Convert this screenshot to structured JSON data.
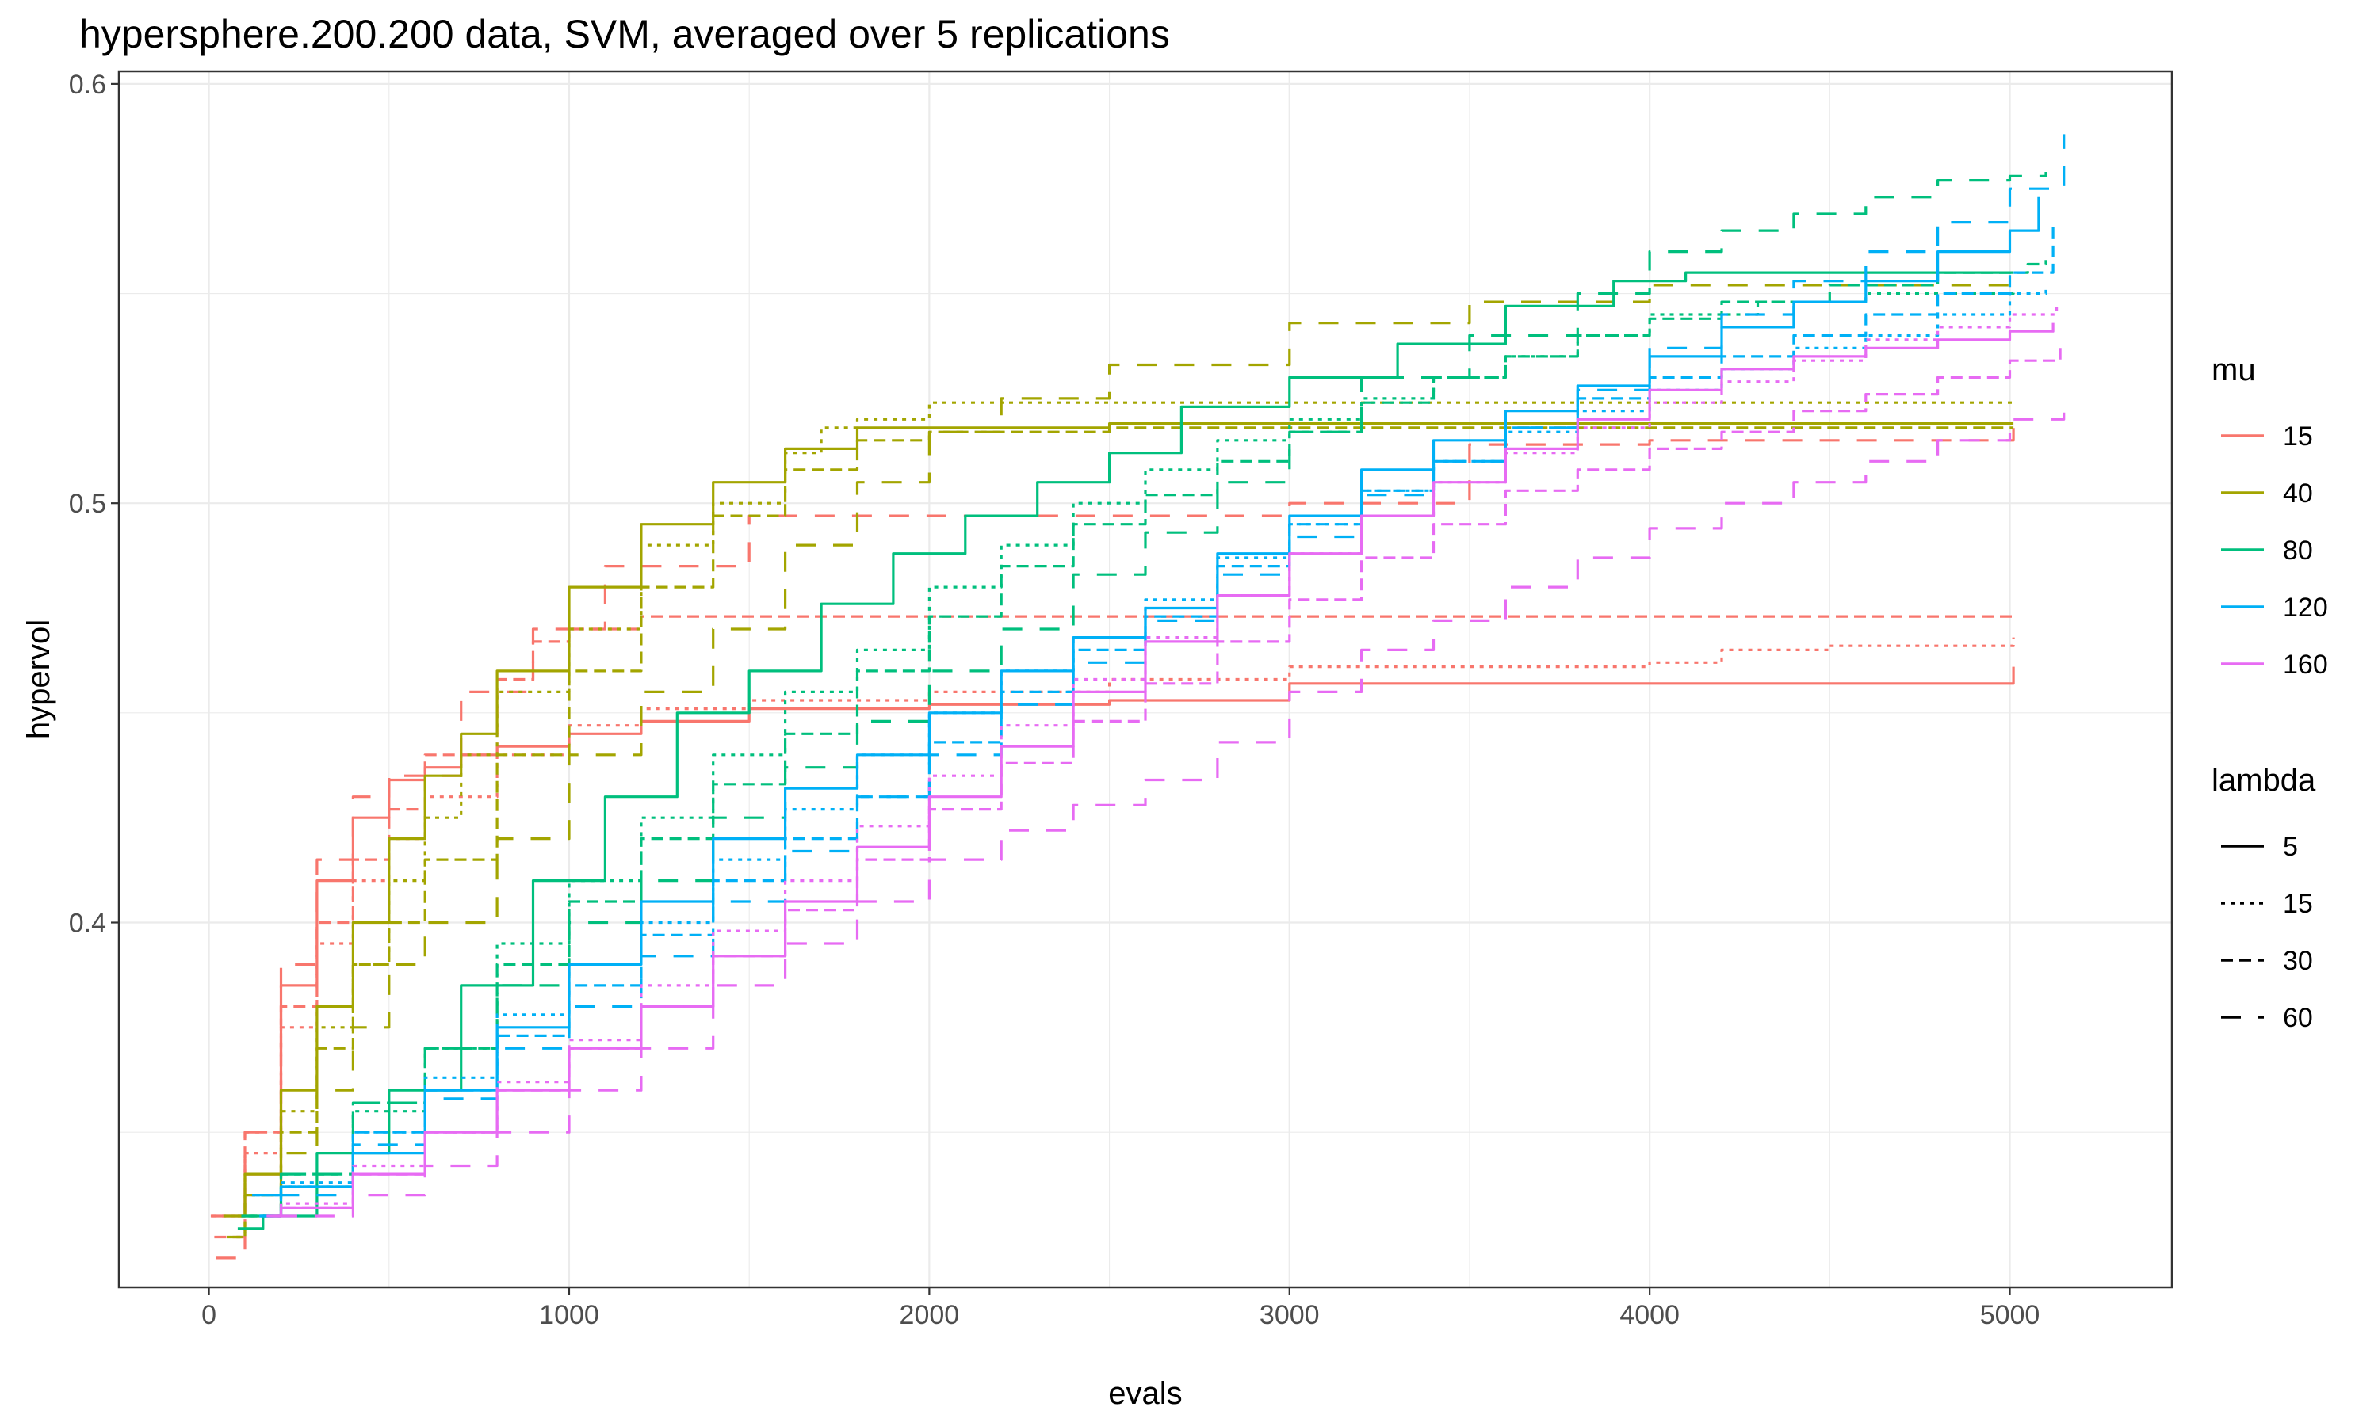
{
  "chart_data": {
    "type": "line",
    "title": "hypersphere.200.200 data, SVM, averaged over 5 replications",
    "xlabel": "evals",
    "ylabel": "hypervol",
    "xlim": [
      -250,
      5450
    ],
    "ylim": [
      0.313,
      0.603
    ],
    "x_ticks": [
      0,
      1000,
      2000,
      3000,
      4000,
      5000
    ],
    "x_tick_labels": [
      "0",
      "1000",
      "2000",
      "3000",
      "4000",
      "5000"
    ],
    "y_ticks": [
      0.4,
      0.5,
      0.6
    ],
    "y_tick_labels": [
      "0.4",
      "0.5",
      "0.6"
    ],
    "grid": true,
    "legend_placement": "right",
    "colors": {
      "15": "#F8766D",
      "40": "#A3A500",
      "80": "#00BF7D",
      "120": "#00B0F6",
      "160": "#E76BF3"
    },
    "legends": [
      {
        "title": "mu",
        "kind": "color",
        "entries": [
          "15",
          "40",
          "80",
          "120",
          "160"
        ]
      },
      {
        "title": "lambda",
        "kind": "linetype",
        "entries": [
          "5",
          "15",
          "30",
          "60"
        ],
        "dashes": [
          "none",
          "5,7",
          "15,8",
          "25,22"
        ]
      }
    ],
    "series": [
      {
        "mu": "15",
        "lambda": "5",
        "x": [
          5,
          100,
          200,
          300,
          400,
          500,
          600,
          700,
          800,
          1000,
          1200,
          1500,
          2000,
          2500,
          3000,
          3500,
          4000,
          4500,
          4700,
          5010
        ],
        "y": [
          0.33,
          0.34,
          0.385,
          0.41,
          0.425,
          0.434,
          0.437,
          0.44,
          0.442,
          0.445,
          0.448,
          0.451,
          0.452,
          0.453,
          0.457,
          0.457,
          0.457,
          0.457,
          0.457,
          0.461
        ]
      },
      {
        "mu": "15",
        "lambda": "15",
        "x": [
          10,
          100,
          200,
          300,
          400,
          500,
          600,
          800,
          1000,
          1200,
          1500,
          2000,
          2500,
          3000,
          4000,
          4200,
          4500,
          5010
        ],
        "y": [
          0.33,
          0.345,
          0.375,
          0.395,
          0.41,
          0.42,
          0.43,
          0.44,
          0.447,
          0.451,
          0.453,
          0.455,
          0.458,
          0.461,
          0.462,
          0.465,
          0.466,
          0.468
        ]
      },
      {
        "mu": "15",
        "lambda": "30",
        "x": [
          15,
          100,
          200,
          300,
          400,
          500,
          600,
          800,
          900,
          1000,
          1200,
          5010
        ],
        "y": [
          0.325,
          0.35,
          0.38,
          0.4,
          0.415,
          0.427,
          0.44,
          0.458,
          0.467,
          0.47,
          0.473,
          0.473
        ]
      },
      {
        "mu": "15",
        "lambda": "60",
        "x": [
          20,
          100,
          200,
          300,
          400,
          500,
          700,
          900,
          1100,
          1500,
          2000,
          2500,
          3000,
          3500,
          4000,
          5010
        ],
        "y": [
          0.32,
          0.35,
          0.39,
          0.415,
          0.43,
          0.435,
          0.455,
          0.47,
          0.485,
          0.497,
          0.497,
          0.497,
          0.5,
          0.514,
          0.515,
          0.518
        ]
      },
      {
        "mu": "40",
        "lambda": "5",
        "x": [
          40,
          100,
          200,
          300,
          400,
          500,
          600,
          700,
          800,
          1000,
          1200,
          1400,
          1600,
          1800,
          2000,
          2500,
          3000,
          4000,
          5010
        ],
        "y": [
          0.33,
          0.34,
          0.36,
          0.38,
          0.4,
          0.42,
          0.435,
          0.445,
          0.46,
          0.48,
          0.495,
          0.505,
          0.513,
          0.518,
          0.518,
          0.519,
          0.519,
          0.519,
          0.519
        ]
      },
      {
        "mu": "40",
        "lambda": "15",
        "x": [
          50,
          100,
          200,
          300,
          400,
          500,
          600,
          700,
          800,
          1000,
          1200,
          1400,
          1600,
          1700,
          1800,
          2000,
          5010
        ],
        "y": [
          0.325,
          0.335,
          0.355,
          0.375,
          0.39,
          0.41,
          0.425,
          0.44,
          0.455,
          0.47,
          0.49,
          0.5,
          0.512,
          0.518,
          0.52,
          0.524,
          0.524
        ]
      },
      {
        "mu": "40",
        "lambda": "30",
        "x": [
          60,
          100,
          200,
          300,
          400,
          500,
          600,
          800,
          1000,
          1200,
          1400,
          1600,
          1800,
          2000,
          2500,
          3000,
          5010
        ],
        "y": [
          0.325,
          0.335,
          0.35,
          0.37,
          0.39,
          0.4,
          0.415,
          0.44,
          0.46,
          0.48,
          0.497,
          0.508,
          0.515,
          0.517,
          0.518,
          0.518,
          0.518
        ]
      },
      {
        "mu": "40",
        "lambda": "60",
        "x": [
          80,
          200,
          300,
          400,
          500,
          600,
          800,
          1000,
          1200,
          1400,
          1600,
          1800,
          2000,
          2200,
          2500,
          3000,
          3500,
          4000,
          5010
        ],
        "y": [
          0.33,
          0.345,
          0.36,
          0.375,
          0.39,
          0.4,
          0.42,
          0.44,
          0.455,
          0.47,
          0.49,
          0.505,
          0.517,
          0.525,
          0.533,
          0.543,
          0.548,
          0.552,
          0.553
        ]
      },
      {
        "mu": "80",
        "lambda": "5",
        "x": [
          80,
          150,
          300,
          500,
          700,
          900,
          1100,
          1300,
          1500,
          1700,
          1900,
          2100,
          2300,
          2500,
          2700,
          3000,
          3300,
          3600,
          3900,
          4100,
          5010
        ],
        "y": [
          0.327,
          0.33,
          0.345,
          0.36,
          0.385,
          0.41,
          0.43,
          0.45,
          0.46,
          0.476,
          0.488,
          0.497,
          0.505,
          0.512,
          0.523,
          0.53,
          0.538,
          0.547,
          0.553,
          0.555,
          0.555
        ]
      },
      {
        "mu": "80",
        "lambda": "15",
        "x": [
          90,
          200,
          400,
          600,
          800,
          1000,
          1200,
          1400,
          1600,
          1800,
          2000,
          2200,
          2400,
          2600,
          2800,
          3000,
          3200,
          3400,
          3600,
          3800,
          4000,
          4300,
          4600,
          5010
        ],
        "y": [
          0.33,
          0.337,
          0.355,
          0.37,
          0.395,
          0.41,
          0.425,
          0.44,
          0.455,
          0.465,
          0.48,
          0.49,
          0.5,
          0.508,
          0.515,
          0.52,
          0.525,
          0.53,
          0.535,
          0.54,
          0.545,
          0.548,
          0.55,
          0.551
        ]
      },
      {
        "mu": "80",
        "lambda": "30",
        "x": [
          100,
          200,
          400,
          600,
          800,
          1000,
          1200,
          1400,
          1600,
          1800,
          2000,
          2200,
          2400,
          2600,
          2800,
          3000,
          3200,
          3400,
          3600,
          3800,
          4000,
          4200,
          4500,
          4800,
          5050,
          5100
        ],
        "y": [
          0.33,
          0.34,
          0.357,
          0.37,
          0.39,
          0.405,
          0.42,
          0.433,
          0.445,
          0.46,
          0.473,
          0.485,
          0.495,
          0.502,
          0.51,
          0.517,
          0.524,
          0.53,
          0.535,
          0.54,
          0.544,
          0.548,
          0.552,
          0.555,
          0.557,
          0.558
        ]
      },
      {
        "mu": "80",
        "lambda": "60",
        "x": [
          110,
          200,
          400,
          600,
          800,
          1000,
          1200,
          1400,
          1600,
          1800,
          2000,
          2200,
          2400,
          2600,
          2800,
          3000,
          3200,
          3500,
          3800,
          4000,
          4200,
          4400,
          4600,
          4800,
          5000,
          5100
        ],
        "y": [
          0.33,
          0.34,
          0.357,
          0.37,
          0.385,
          0.4,
          0.41,
          0.425,
          0.437,
          0.448,
          0.46,
          0.47,
          0.483,
          0.493,
          0.505,
          0.517,
          0.53,
          0.54,
          0.55,
          0.56,
          0.565,
          0.569,
          0.573,
          0.577,
          0.578,
          0.579
        ]
      },
      {
        "mu": "120",
        "lambda": "5",
        "x": [
          120,
          200,
          400,
          600,
          800,
          1000,
          1200,
          1400,
          1600,
          1800,
          2000,
          2200,
          2400,
          2600,
          2800,
          3000,
          3200,
          3400,
          3600,
          3800,
          4000,
          4200,
          4400,
          4600,
          4800,
          5000,
          5080
        ],
        "y": [
          0.335,
          0.337,
          0.345,
          0.36,
          0.375,
          0.39,
          0.405,
          0.42,
          0.432,
          0.44,
          0.45,
          0.46,
          0.468,
          0.475,
          0.488,
          0.497,
          0.508,
          0.515,
          0.522,
          0.528,
          0.535,
          0.542,
          0.548,
          0.553,
          0.56,
          0.565,
          0.573
        ]
      },
      {
        "mu": "120",
        "lambda": "15",
        "x": [
          130,
          200,
          400,
          600,
          800,
          1000,
          1200,
          1400,
          1600,
          1800,
          2000,
          2200,
          2400,
          2600,
          2800,
          3000,
          3200,
          3400,
          3600,
          3800,
          4000,
          4200,
          4400,
          4600,
          4800,
          5000,
          5100
        ],
        "y": [
          0.335,
          0.338,
          0.35,
          0.363,
          0.378,
          0.39,
          0.4,
          0.415,
          0.427,
          0.44,
          0.45,
          0.46,
          0.468,
          0.477,
          0.487,
          0.495,
          0.503,
          0.51,
          0.517,
          0.522,
          0.527,
          0.532,
          0.537,
          0.54,
          0.545,
          0.55,
          0.552
        ]
      },
      {
        "mu": "120",
        "lambda": "30",
        "x": [
          140,
          200,
          400,
          600,
          800,
          1000,
          1200,
          1400,
          1600,
          1800,
          2000,
          2200,
          2400,
          2600,
          2800,
          3000,
          3200,
          3400,
          3600,
          3800,
          4000,
          4200,
          4400,
          4600,
          4800,
          5000,
          5120
        ],
        "y": [
          0.33,
          0.337,
          0.35,
          0.36,
          0.373,
          0.385,
          0.397,
          0.41,
          0.42,
          0.43,
          0.443,
          0.455,
          0.465,
          0.473,
          0.485,
          0.495,
          0.503,
          0.51,
          0.518,
          0.525,
          0.53,
          0.535,
          0.54,
          0.545,
          0.55,
          0.555,
          0.567
        ]
      },
      {
        "mu": "120",
        "lambda": "60",
        "x": [
          150,
          200,
          400,
          600,
          800,
          1000,
          1200,
          1400,
          1600,
          1800,
          2000,
          2200,
          2400,
          2600,
          2800,
          3000,
          3200,
          3400,
          3600,
          3800,
          4000,
          4200,
          4400,
          4600,
          4800,
          5000,
          5150
        ],
        "y": [
          0.33,
          0.335,
          0.347,
          0.358,
          0.37,
          0.38,
          0.392,
          0.405,
          0.417,
          0.43,
          0.44,
          0.452,
          0.462,
          0.472,
          0.483,
          0.492,
          0.502,
          0.51,
          0.518,
          0.527,
          0.537,
          0.545,
          0.553,
          0.56,
          0.567,
          0.575,
          0.588
        ]
      },
      {
        "mu": "160",
        "lambda": "5",
        "x": [
          160,
          200,
          400,
          600,
          800,
          1000,
          1200,
          1400,
          1600,
          1800,
          2000,
          2200,
          2400,
          2600,
          2800,
          3000,
          3200,
          3400,
          3600,
          3800,
          4000,
          4200,
          4400,
          4600,
          4800,
          5000,
          5120
        ],
        "y": [
          0.33,
          0.332,
          0.34,
          0.35,
          0.36,
          0.37,
          0.38,
          0.392,
          0.405,
          0.418,
          0.43,
          0.442,
          0.455,
          0.467,
          0.478,
          0.488,
          0.497,
          0.505,
          0.513,
          0.52,
          0.527,
          0.532,
          0.535,
          0.537,
          0.539,
          0.541,
          0.543
        ]
      },
      {
        "mu": "160",
        "lambda": "15",
        "x": [
          170,
          200,
          400,
          600,
          800,
          1000,
          1200,
          1400,
          1600,
          1800,
          2000,
          2200,
          2400,
          2600,
          2800,
          3000,
          3200,
          3400,
          3600,
          3800,
          4000,
          4200,
          4400,
          4600,
          4800,
          5000,
          5130
        ],
        "y": [
          0.33,
          0.333,
          0.342,
          0.35,
          0.362,
          0.372,
          0.385,
          0.398,
          0.41,
          0.423,
          0.435,
          0.447,
          0.458,
          0.468,
          0.478,
          0.488,
          0.497,
          0.505,
          0.512,
          0.518,
          0.524,
          0.529,
          0.534,
          0.539,
          0.542,
          0.545,
          0.547
        ]
      },
      {
        "mu": "160",
        "lambda": "30",
        "x": [
          180,
          200,
          400,
          600,
          800,
          1000,
          1200,
          1400,
          1600,
          1800,
          2000,
          2200,
          2400,
          2600,
          2800,
          3000,
          3200,
          3400,
          3600,
          3800,
          4000,
          4200,
          4400,
          4600,
          4800,
          5000,
          5140
        ],
        "y": [
          0.33,
          0.332,
          0.34,
          0.35,
          0.36,
          0.37,
          0.38,
          0.392,
          0.403,
          0.415,
          0.427,
          0.438,
          0.448,
          0.457,
          0.467,
          0.477,
          0.487,
          0.495,
          0.503,
          0.508,
          0.513,
          0.517,
          0.522,
          0.526,
          0.53,
          0.534,
          0.537
        ]
      },
      {
        "mu": "160",
        "lambda": "60",
        "x": [
          190,
          200,
          400,
          600,
          800,
          1000,
          1200,
          1400,
          1600,
          1800,
          2000,
          2200,
          2400,
          2600,
          2800,
          3000,
          3200,
          3400,
          3600,
          3800,
          4000,
          4200,
          4400,
          4600,
          4800,
          5000,
          5150
        ],
        "y": [
          0.33,
          0.33,
          0.335,
          0.342,
          0.35,
          0.36,
          0.37,
          0.385,
          0.395,
          0.405,
          0.415,
          0.422,
          0.428,
          0.434,
          0.443,
          0.455,
          0.465,
          0.472,
          0.48,
          0.487,
          0.494,
          0.5,
          0.505,
          0.51,
          0.515,
          0.52,
          0.524
        ]
      }
    ]
  }
}
